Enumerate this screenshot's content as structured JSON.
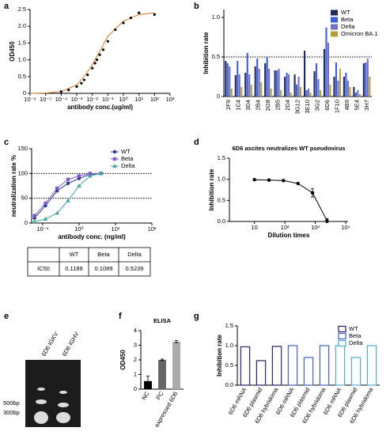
{
  "chart_data": [
    {
      "panel": "a",
      "type": "scatter",
      "xlog": true,
      "xlabel": "antibody conc.(ug/ml)",
      "ylabel": "OD450",
      "xlim": [
        1e-06,
        1000
      ],
      "xticks": [
        {
          "value": 1e-06,
          "label": "10⁻⁶"
        },
        {
          "value": 1e-05,
          "label": "10⁻⁵"
        },
        {
          "value": 0.0001,
          "label": "10⁻⁴"
        },
        {
          "value": 0.001,
          "label": "10⁻³"
        },
        {
          "value": 0.01,
          "label": "10⁻²"
        },
        {
          "value": 0.1,
          "label": "10⁻¹"
        },
        {
          "value": 1,
          "label": "10⁰"
        },
        {
          "value": 10,
          "label": "10¹"
        },
        {
          "value": 100,
          "label": "10²"
        },
        {
          "value": 1000,
          "label": "10³"
        }
      ],
      "ylim": [
        0,
        2.5
      ],
      "yticks": [
        0,
        0.5,
        {
          "value": 1,
          "label": "1.0"
        },
        1.5,
        {
          "value": 2,
          "label": "2.0"
        },
        2.5
      ],
      "x": [
        0.0001,
        0.0003,
        0.001,
        0.002,
        0.003,
        0.005,
        0.01,
        0.015,
        0.02,
        0.03,
        0.05,
        0.1,
        0.3,
        1,
        3,
        10,
        100
      ],
      "values": [
        0.05,
        0.1,
        0.2,
        0.3,
        0.4,
        0.55,
        0.75,
        0.9,
        1.0,
        1.15,
        1.3,
        1.55,
        1.9,
        2.1,
        2.25,
        2.4,
        2.35
      ],
      "color": "#000000",
      "fit_x": [
        1e-06,
        1e-05,
        0.0001,
        0.001,
        0.003,
        0.01,
        0.03,
        0.1,
        1,
        10,
        100
      ],
      "fit_values": [
        0,
        0.01,
        0.05,
        0.25,
        0.5,
        0.85,
        1.25,
        1.7,
        2.15,
        2.35,
        2.4
      ],
      "fit_color": "#d98b4a"
    },
    {
      "panel": "b",
      "type": "bar",
      "ylabel": "Inhibition rate",
      "categories": [
        "2F9",
        "1C4",
        "3D4",
        "2B4",
        "2G8",
        "2B5",
        "2D4",
        "3G12",
        "3E10",
        "3G2",
        "6D6",
        "1F10",
        "4B9",
        "5E4",
        "3H7"
      ],
      "series": [
        {
          "name": "WT",
          "color": "#1f2a5c",
          "values": [
            0.45,
            0.27,
            0.3,
            0.38,
            0.42,
            0.33,
            0.25,
            0.28,
            0.58,
            0.32,
            0.6,
            0.25,
            0.25,
            0.12,
            0.42
          ]
        },
        {
          "name": "Beta",
          "color": "#3f5fd8",
          "values": [
            0.42,
            0.45,
            0.55,
            0.48,
            0.5,
            0.33,
            0.3,
            0.15,
            0.08,
            0.42,
            0.87,
            0.43,
            0.3,
            0.05,
            0.43
          ]
        },
        {
          "name": "Delta",
          "color": "#7070c8",
          "values": [
            0.38,
            0.28,
            0.28,
            0.35,
            0.35,
            0.35,
            0.28,
            0.25,
            0.1,
            0.22,
            0.68,
            0.2,
            0.2,
            0.08,
            0.48
          ]
        },
        {
          "name": "Omicron BA.1",
          "color": "#b5a040",
          "values": [
            0.1,
            0.12,
            0.15,
            0.18,
            0.1,
            0.08,
            0.05,
            0.12,
            0.05,
            0.08,
            0.15,
            0.35,
            0.12,
            0.03,
            0.25
          ]
        }
      ],
      "ylim": [
        0,
        1.1
      ],
      "yticks": [
        0,
        0.5,
        {
          "value": 1,
          "label": "1.0"
        }
      ],
      "reference_lines": [
        0.5
      ],
      "legend": "upper right",
      "label_rotation": -90
    },
    {
      "panel": "c",
      "type": "line",
      "xlog": true,
      "xlabel": "antibody conc. (ng/ml)",
      "ylabel": "neutralization rate %",
      "xlim": [
        0.05,
        100
      ],
      "xticks": [
        {
          "value": 0.1,
          "label": "10⁻¹"
        },
        {
          "value": 1,
          "label": "10⁰"
        },
        {
          "value": 10,
          "label": "10¹"
        },
        {
          "value": 100,
          "label": "10²"
        }
      ],
      "ylim": [
        0,
        150
      ],
      "yticks": [
        0,
        50,
        100,
        150
      ],
      "reference_lines": [
        50,
        100
      ],
      "x": [
        0.06,
        0.12,
        0.25,
        0.5,
        1,
        2,
        4
      ],
      "series": [
        {
          "name": "WT",
          "color": "#2b3a8c",
          "marker": "circle",
          "values": [
            10,
            35,
            65,
            80,
            90,
            98,
            100
          ]
        },
        {
          "name": "Beta",
          "color": "#7b5ec9",
          "marker": "square",
          "values": [
            15,
            40,
            70,
            88,
            95,
            100,
            100
          ]
        },
        {
          "name": "Delta",
          "color": "#3fa8a0",
          "marker": "triangle",
          "values": [
            3,
            8,
            20,
            45,
            75,
            95,
            100
          ]
        }
      ],
      "legend": "upper right",
      "table": {
        "header": [
          "WT",
          "Beta",
          "Delta"
        ],
        "rows": [
          [
            "IC50",
            0.1189,
            0.1089,
            0.5239
          ]
        ]
      }
    },
    {
      "panel": "d",
      "type": "line",
      "xlog": true,
      "title": "6D6 ascites neutralizes WT pseudovirus",
      "xlabel": "Dilution times",
      "ylabel": "Inhibition rate",
      "xlim": [
        1.5,
        12000
      ],
      "xticks": [
        10,
        {
          "value": 100,
          "label": "10²"
        },
        {
          "value": 1000,
          "label": "10³"
        },
        {
          "value": 10000,
          "label": "10⁴"
        }
      ],
      "ylim": [
        0,
        1.5
      ],
      "yticks": [
        {
          "value": 0,
          "label": "0.0"
        },
        0.5,
        {
          "value": 1,
          "label": "1.0"
        },
        1.5
      ],
      "x": [
        10,
        30,
        90,
        270,
        810,
        2430
      ],
      "series": [
        {
          "color": "#000000",
          "marker": "circle",
          "values": [
            0.99,
            0.98,
            0.97,
            0.9,
            0.68,
            0.02
          ],
          "errors": [
            null,
            null,
            null,
            null,
            0.1,
            0.05
          ]
        }
      ]
    },
    {
      "panel": "e",
      "type": "image",
      "lanes": [
        "6D6 IGKV",
        "6D6 IGHV"
      ],
      "markers": [
        "500bp",
        "300bp"
      ]
    },
    {
      "panel": "f",
      "type": "bar",
      "title": "ELISA",
      "ylabel": "OD450",
      "categories": [
        "NC",
        "PC",
        "expressed 6D6"
      ],
      "values": [
        0.55,
        2.0,
        3.25
      ],
      "errors": [
        0.35,
        0.05,
        0.08
      ],
      "colors": [
        "#000000",
        "#666666",
        "#aaaaaa"
      ],
      "ylim": [
        0,
        4
      ],
      "yticks": [
        0,
        1,
        2,
        3,
        4
      ],
      "label_rotation": -60
    },
    {
      "panel": "g",
      "type": "bar",
      "ylabel": "Inhibition rate",
      "bar_style": "outline",
      "categories": [
        "6D6 mRNA",
        "6D6 plasmid",
        "6D6 hybridoma",
        "6D6 mRNA",
        "6D6 plasmid",
        "6D6 hybridoma",
        "6D6 mRNA",
        "6D6 plasmid",
        "6D6 hybridoma"
      ],
      "series": [
        {
          "name": "WT",
          "color": "#3a2a6e",
          "values": [
            0.97,
            0.62,
            0.98,
            null,
            null,
            null,
            null,
            null,
            null
          ]
        },
        {
          "name": "Beta",
          "color": "#5068c8",
          "values": [
            null,
            null,
            null,
            1.0,
            0.7,
            1.0,
            null,
            null,
            null
          ]
        },
        {
          "name": "Delta",
          "color": "#5ab0d0",
          "values": [
            null,
            null,
            null,
            null,
            null,
            null,
            1.0,
            0.7,
            1.0
          ]
        }
      ],
      "ylim": [
        0,
        1.5
      ],
      "yticks": [
        {
          "value": 0,
          "label": "0.0"
        },
        0.5,
        {
          "value": 1,
          "label": "1.0"
        },
        1.5
      ],
      "legend": "upper right",
      "label_rotation": -60
    }
  ]
}
